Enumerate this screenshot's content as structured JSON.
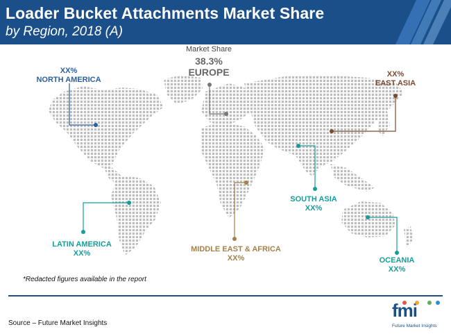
{
  "header": {
    "title": "Loader Bucket Attachments Market Share",
    "subtitle": "by Region, 2018 (A)"
  },
  "chart_data": {
    "type": "map",
    "value_label": "Market Share",
    "regions": [
      {
        "name": "NORTH AMERICA",
        "value": "XX%",
        "color": "#2b5f9e"
      },
      {
        "name": "EUROPE",
        "value": "38.3%",
        "color": "#777777"
      },
      {
        "name": "EAST ASIA",
        "value": "XX%",
        "color": "#7a4a2f"
      },
      {
        "name": "SOUTH ASIA",
        "value": "XX%",
        "color": "#159d9a"
      },
      {
        "name": "LATIN AMERICA",
        "value": "XX%",
        "color": "#159d9a"
      },
      {
        "name": "MIDDLE EAST & AFRICA",
        "value": "XX%",
        "color": "#a5814a"
      },
      {
        "name": "OCEANIA",
        "value": "XX%",
        "color": "#159d9a"
      }
    ]
  },
  "footer": {
    "note": "*Redacted figures available in the report",
    "source": "Source – Future Market Insights",
    "logo_text": "fmi",
    "logo_sub": "Future Market Insights"
  }
}
